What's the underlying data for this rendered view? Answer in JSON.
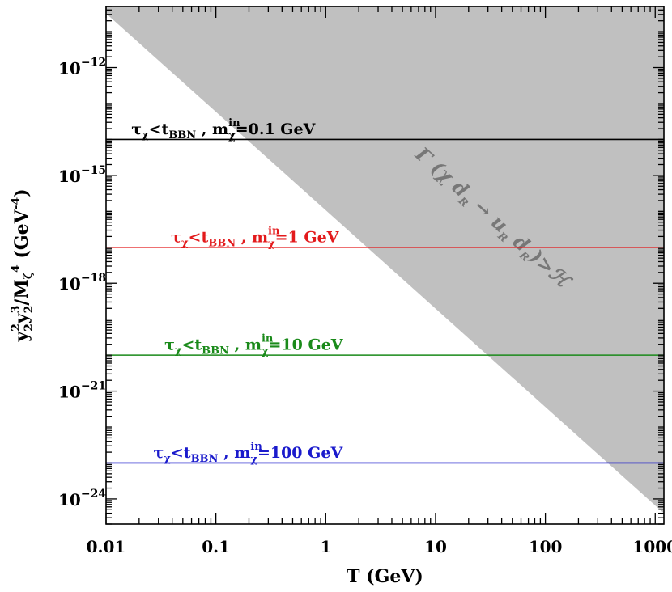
{
  "chart_data": {
    "type": "line",
    "x_scale": "log",
    "y_scale": "log",
    "xlim": [
      0.01,
      1200
    ],
    "ylim": [
      2e-25,
      5e-11
    ],
    "xlabel": "T  (GeV)",
    "ylabel": {
      "text": "y₂²y₃²/M_ζ⁴ (GeV⁻⁴)",
      "parts": [
        "y",
        "2",
        "2",
        "y",
        "3",
        "2",
        "/M",
        "ζ",
        "4",
        " (GeV",
        "-4",
        ")"
      ]
    },
    "x_ticks": [
      {
        "value": 0.01,
        "label": "0.01"
      },
      {
        "value": 0.1,
        "label": "0.1"
      },
      {
        "value": 1,
        "label": "1"
      },
      {
        "value": 10,
        "label": "10"
      },
      {
        "value": 100,
        "label": "100"
      },
      {
        "value": 1000,
        "label": "1000"
      }
    ],
    "y_ticks": [
      {
        "value": 1e-12,
        "base": "10",
        "exp": "−12"
      },
      {
        "value": 1e-15,
        "base": "10",
        "exp": "−15"
      },
      {
        "value": 1e-18,
        "base": "10",
        "exp": "−18"
      },
      {
        "value": 1e-21,
        "base": "10",
        "exp": "−21"
      },
      {
        "value": 1e-24,
        "base": "10",
        "exp": "−24"
      }
    ],
    "shaded_region": {
      "boundary": {
        "x": [
          0.0085,
          1200
        ],
        "y": [
          5e-11,
          4e-25
        ]
      },
      "side": "above",
      "color": "#c0c0c0",
      "label": {
        "text": "Γ (χ d̄_R → u_R d_R) > H",
        "parts": [
          "Γ (χ d",
          "R",
          " → u",
          "R",
          " d",
          "R",
          ")>",
          "ℋ"
        ],
        "x": 30,
        "y": 5e-17
      }
    },
    "series": [
      {
        "name": "τχ<tBBN , mχin=0.1 GeV",
        "y": 1e-14,
        "color": "#000000",
        "label_parts": [
          "τ",
          "χ",
          "<t",
          "BBN",
          " , m",
          "in",
          "χ",
          "=0.1 GeV"
        ],
        "label_at": {
          "x": 0.017,
          "y": 1.4e-14
        }
      },
      {
        "name": "τχ<tBBN , mχin=1 GeV",
        "y": 1e-17,
        "color": "#e31a1c",
        "label_parts": [
          "τ",
          "χ",
          "<t",
          "BBN",
          " , m",
          "in",
          "χ",
          "=1 GeV"
        ],
        "label_at": {
          "x": 0.039,
          "y": 1.4e-17
        }
      },
      {
        "name": "τχ<tBBN , mχin=10 GeV",
        "y": 1e-20,
        "color": "#1a8a1a",
        "label_parts": [
          "τ",
          "χ",
          "<t",
          "BBN",
          " , m",
          "in",
          "χ",
          "=10 GeV"
        ],
        "label_at": {
          "x": 0.034,
          "y": 1.4e-20
        }
      },
      {
        "name": "τχ<tBBN , mχin=100 GeV",
        "y": 1e-23,
        "color": "#1a1acc",
        "label_parts": [
          "τ",
          "χ",
          "<t",
          "BBN",
          " , m",
          "in",
          "χ",
          "=100 GeV"
        ],
        "label_at": {
          "x": 0.027,
          "y": 1.4e-23
        }
      }
    ]
  }
}
